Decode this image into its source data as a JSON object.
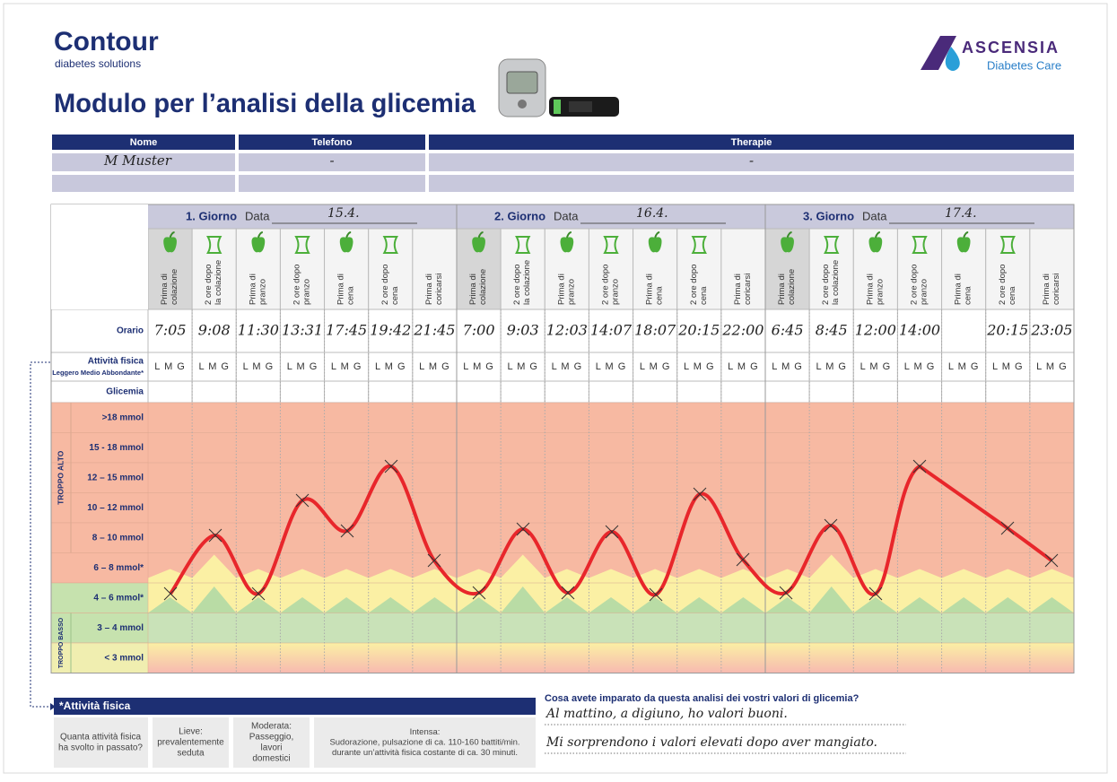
{
  "header": {
    "brand": "Contour",
    "brand_sub": "diabetes solutions",
    "title": "Modulo per l’analisi della glicemia",
    "partner": "ASCENSIA",
    "partner_sub": "Diabetes Care"
  },
  "patient": {
    "columns": [
      "Nome",
      "Telefono",
      "Therapie"
    ],
    "values": [
      "M Muster",
      "-",
      "-"
    ]
  },
  "log": {
    "days": [
      {
        "label": "1. Giorno",
        "date_label": "Data",
        "date": "15.4."
      },
      {
        "label": "2. Giorno",
        "date_label": "Data",
        "date": "16.4."
      },
      {
        "label": "3. Giorno",
        "date_label": "Data",
        "date": "17.4."
      }
    ],
    "slots": [
      [
        "Prima di",
        "colazione"
      ],
      [
        "2 ore dopo",
        "la colazione"
      ],
      [
        "Prima di",
        "pranzo"
      ],
      [
        "2 ore dopo",
        "pranzo"
      ],
      [
        "Prima di",
        "cena"
      ],
      [
        "2 ore dopo",
        "cena"
      ],
      [
        "Prima di",
        "coricarsi"
      ]
    ],
    "row_labels": {
      "time": "Orario",
      "activity": "Attività fisica",
      "activity_sub": "Leggero Medio Abbondante*",
      "glucose": "Glicemia"
    },
    "times": [
      "7:05",
      "9:08",
      "11:30",
      "13:31",
      "17:45",
      "19:42",
      "21:45",
      "7:00",
      "9:03",
      "12:03",
      "14:07",
      "18:07",
      "20:15",
      "22:00",
      "6:45",
      "8:45",
      "12:00",
      "14:00",
      null,
      "20:15",
      "23:05"
    ],
    "activity_options": "L M G",
    "zones": [
      ">18 mmol",
      "15 - 18 mmol",
      "12 – 15 mmol",
      "10 – 12 mmol",
      "8 – 10 mmol",
      "6 – 8 mmol*",
      "4 – 6 mmol*",
      "3 – 4 mmol",
      "< 3 mmol"
    ],
    "zone_groups": [
      "TROPPO ALTO",
      "TROPPO BASSO"
    ]
  },
  "activity_legend": {
    "title": "*Attività fisica",
    "question": [
      "Quanta attività fisica",
      "ha svolto in passato?"
    ],
    "levels": [
      [
        "Lieve:",
        "prevalentemente",
        "seduta"
      ],
      [
        "Moderata:",
        "Passeggio,",
        "lavori",
        "domestici"
      ],
      [
        "Intensa:",
        "Sudorazione, pulsazione di ca. 110-160 battiti/min.",
        "durante un’attività fisica costante di ca. 30 minuti."
      ]
    ]
  },
  "reflection": {
    "question": "Cosa avete imparato da questa analisi dei vostri valori di glicemia?",
    "answers": [
      "Al mattino, a digiuno, ho valori buoni.",
      "Mi sorprendono i valori elevati dopo aver mangiato."
    ]
  }
}
